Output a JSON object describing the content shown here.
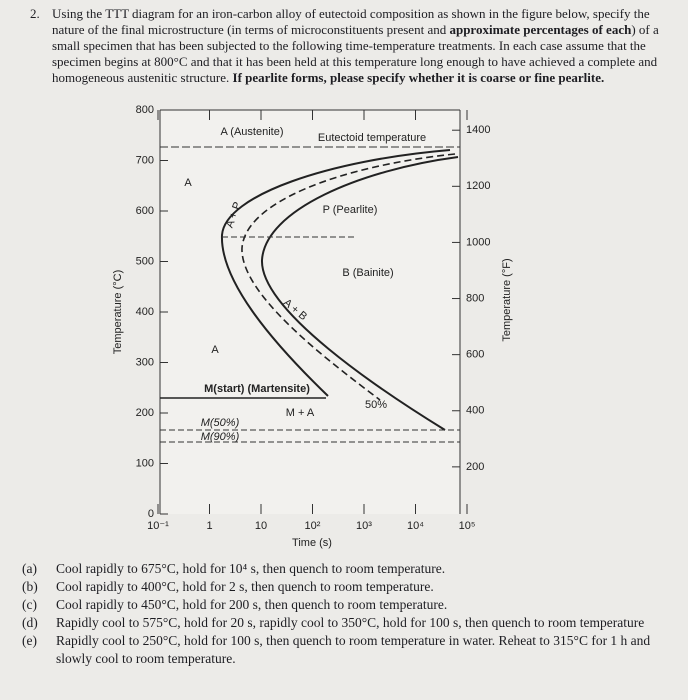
{
  "problem": {
    "number": "2.",
    "statement": [
      "Using the TTT diagram for an iron-carbon alloy of eutectoid composition as shown in the figure below, specify the nature of the final microstructure (in terms of microconstituents present and ",
      "approximate percentages of each",
      ") of a small specimen that has been subjected to the following time-temperature treatments. In each case assume that the specimen begins at 800°C and that it has been held at this temperature long enough to have achieved a complete and homogeneous austenitic structure. ",
      "If pearlite forms, please specify whether it is coarse or fine pearlite."
    ]
  },
  "figure": {
    "y_axis_label": "Temperature (°C)",
    "y2_axis_label": "Temperature (°F)",
    "x_axis_label": "Time (s)",
    "yticks": [
      0,
      100,
      200,
      300,
      400,
      500,
      600,
      700,
      800
    ],
    "y2ticks": [
      200,
      400,
      600,
      800,
      1000,
      1200,
      1400
    ],
    "xticks": [
      "10⁻¹",
      "1",
      "10",
      "10²",
      "10³",
      "10⁴",
      "10⁵"
    ],
    "labels": {
      "austenite": "A (Austenite)",
      "eutectoid": "Eutectoid temperature",
      "a_upper": "A",
      "pearlite": "P (Pearlite)",
      "a_plus_p": "A + P",
      "bainite": "B (Bainite)",
      "a_plus_b": "A + B",
      "a_lower": "A",
      "m_start": "M(start) (Martensite)",
      "m_plus_a": "M + A",
      "fifty": "50%",
      "m50": "M(50%)",
      "m90": "M(90%)"
    }
  },
  "parts": [
    {
      "label": "(a)",
      "text": "Cool rapidly to 675°C, hold for 10⁴ s, then quench to room temperature."
    },
    {
      "label": "(b)",
      "text": "Cool rapidly to 400°C, hold for 2 s, then quench to room temperature."
    },
    {
      "label": "(c)",
      "text": "Cool rapidly to 450°C, hold for 200 s, then quench to room temperature."
    },
    {
      "label": "(d)",
      "text": "Rapidly cool to 575°C, hold for 20 s, rapidly cool to 350°C, hold for 100 s, then quench to room temperature"
    },
    {
      "label": "(e)",
      "text": "Rapidly cool to 250°C, hold for 100 s, then quench to room temperature in water. Reheat to 315°C for 1 h and slowly cool to room temperature."
    }
  ]
}
